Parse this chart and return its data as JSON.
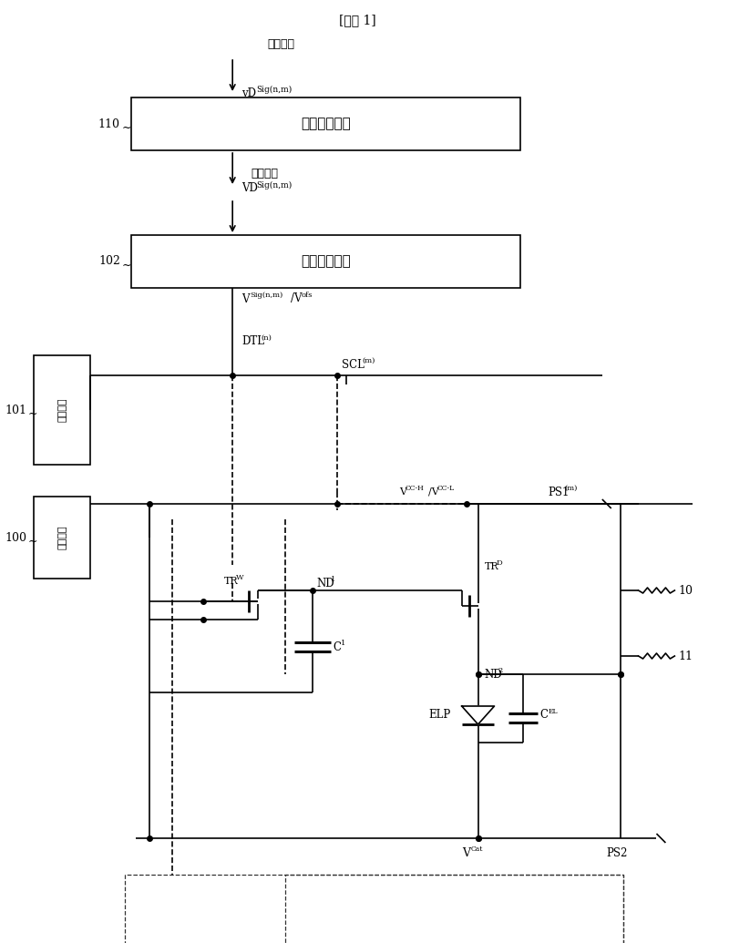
{
  "title": "[示例 1]",
  "bg_color": "#ffffff",
  "box1_label": "亮度校正单元",
  "box2_label": "信号输出电路",
  "box3_label": "扫描电路",
  "box4_label": "电源单元",
  "label_110": "110",
  "label_102": "102",
  "label_101": "101",
  "label_100": "100",
  "input_signal": "输入信号",
  "video_signal": "视频信号",
  "ps2_label": "PS2",
  "label_10": "10",
  "label_11": "11"
}
